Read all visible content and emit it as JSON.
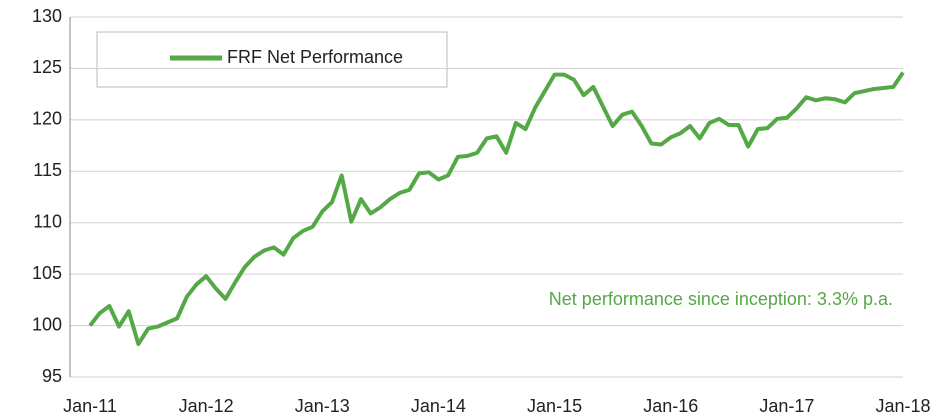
{
  "chart_data": {
    "type": "line",
    "annotation": "Net performance since inception: 3.3% p.a.",
    "categories": [
      "Jan-11",
      null,
      null,
      null,
      null,
      null,
      null,
      null,
      null,
      null,
      null,
      null,
      "Jan-12",
      null,
      null,
      null,
      null,
      null,
      null,
      null,
      null,
      null,
      null,
      null,
      "Jan-13",
      null,
      null,
      null,
      null,
      null,
      null,
      null,
      null,
      null,
      null,
      null,
      "Jan-14",
      null,
      null,
      null,
      null,
      null,
      null,
      null,
      null,
      null,
      null,
      null,
      "Jan-15",
      null,
      null,
      null,
      null,
      null,
      null,
      null,
      null,
      null,
      null,
      null,
      "Jan-16",
      null,
      null,
      null,
      null,
      null,
      null,
      null,
      null,
      null,
      null,
      null,
      "Jan-17",
      null,
      null,
      null,
      null,
      null,
      null,
      null,
      null,
      null,
      null,
      null,
      "Jan-18"
    ],
    "series": [
      {
        "name": "FRF Net Performance",
        "color": "#55a846",
        "values": [
          100.0,
          101.2,
          101.9,
          99.9,
          101.4,
          98.2,
          99.7,
          99.9,
          100.3,
          100.7,
          102.8,
          104.0,
          104.8,
          103.6,
          102.6,
          104.2,
          105.7,
          106.7,
          107.3,
          107.6,
          106.9,
          108.5,
          109.2,
          109.6,
          111.1,
          112.0,
          114.6,
          110.1,
          112.3,
          110.9,
          111.5,
          112.3,
          112.9,
          113.2,
          114.8,
          114.9,
          114.2,
          114.6,
          116.4,
          116.5,
          116.8,
          118.2,
          118.4,
          116.8,
          119.7,
          119.1,
          121.2,
          122.8,
          124.4,
          124.4,
          123.9,
          122.4,
          123.2,
          121.3,
          119.4,
          120.5,
          120.8,
          119.4,
          117.7,
          117.6,
          118.3,
          118.7,
          119.4,
          118.2,
          119.7,
          120.1,
          119.5,
          119.5,
          117.4,
          119.1,
          119.2,
          120.1,
          120.2,
          121.1,
          122.2,
          121.9,
          122.1,
          122.0,
          121.7,
          122.6,
          122.8,
          123.0,
          123.1,
          123.2,
          124.6
        ]
      }
    ],
    "ylim": [
      95,
      130
    ],
    "yticks": [
      95,
      100,
      105,
      110,
      115,
      120,
      125,
      130
    ],
    "grid": true,
    "legend": "top-left"
  }
}
